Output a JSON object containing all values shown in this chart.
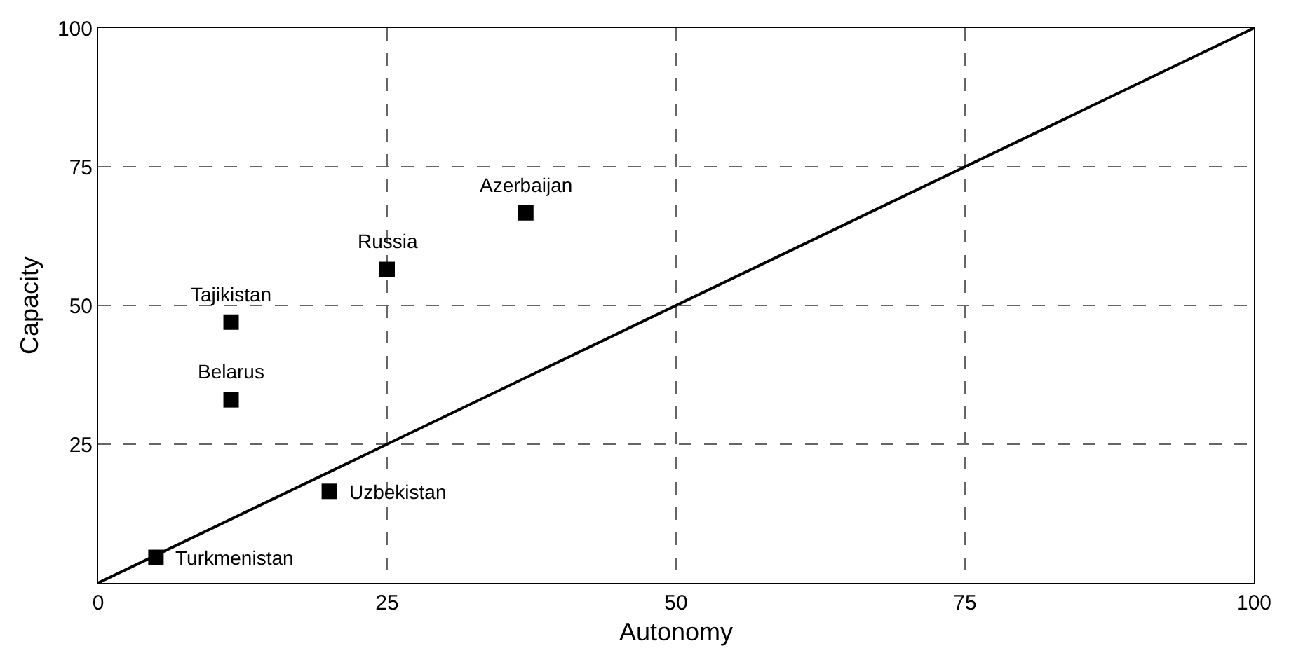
{
  "chart_data": {
    "type": "scatter",
    "xlabel": "Autonomy",
    "ylabel": "Capacity",
    "xlim": [
      0,
      100
    ],
    "ylim": [
      0,
      100
    ],
    "xticks": [
      0,
      25,
      50,
      75,
      100
    ],
    "yticks": [
      25,
      50,
      75,
      100
    ],
    "grid": true,
    "series": [
      {
        "color": "#000000",
        "marker": "square",
        "x": [
          5,
          20,
          11.5,
          11.5,
          25,
          37
        ],
        "values": [
          4.6,
          16.5,
          33,
          47,
          56.5,
          66.7
        ]
      },
      {
        "type": "line",
        "color": "#000000",
        "marker": "none",
        "line_style": "solid",
        "x": [
          0,
          100
        ],
        "values": [
          0,
          100
        ]
      }
    ],
    "annotations": [
      {
        "text": "Turkmenistan",
        "x": 5,
        "y": 4.6
      },
      {
        "text": "Uzbekistan",
        "x": 20,
        "y": 16.5
      },
      {
        "text": "Belarus",
        "x": 11.5,
        "y": 33
      },
      {
        "text": "Tajikistan",
        "x": 11.5,
        "y": 47
      },
      {
        "text": "Russia",
        "x": 25,
        "y": 56.5
      },
      {
        "text": "Azerbaijan",
        "x": 37,
        "y": 66.7
      }
    ]
  }
}
